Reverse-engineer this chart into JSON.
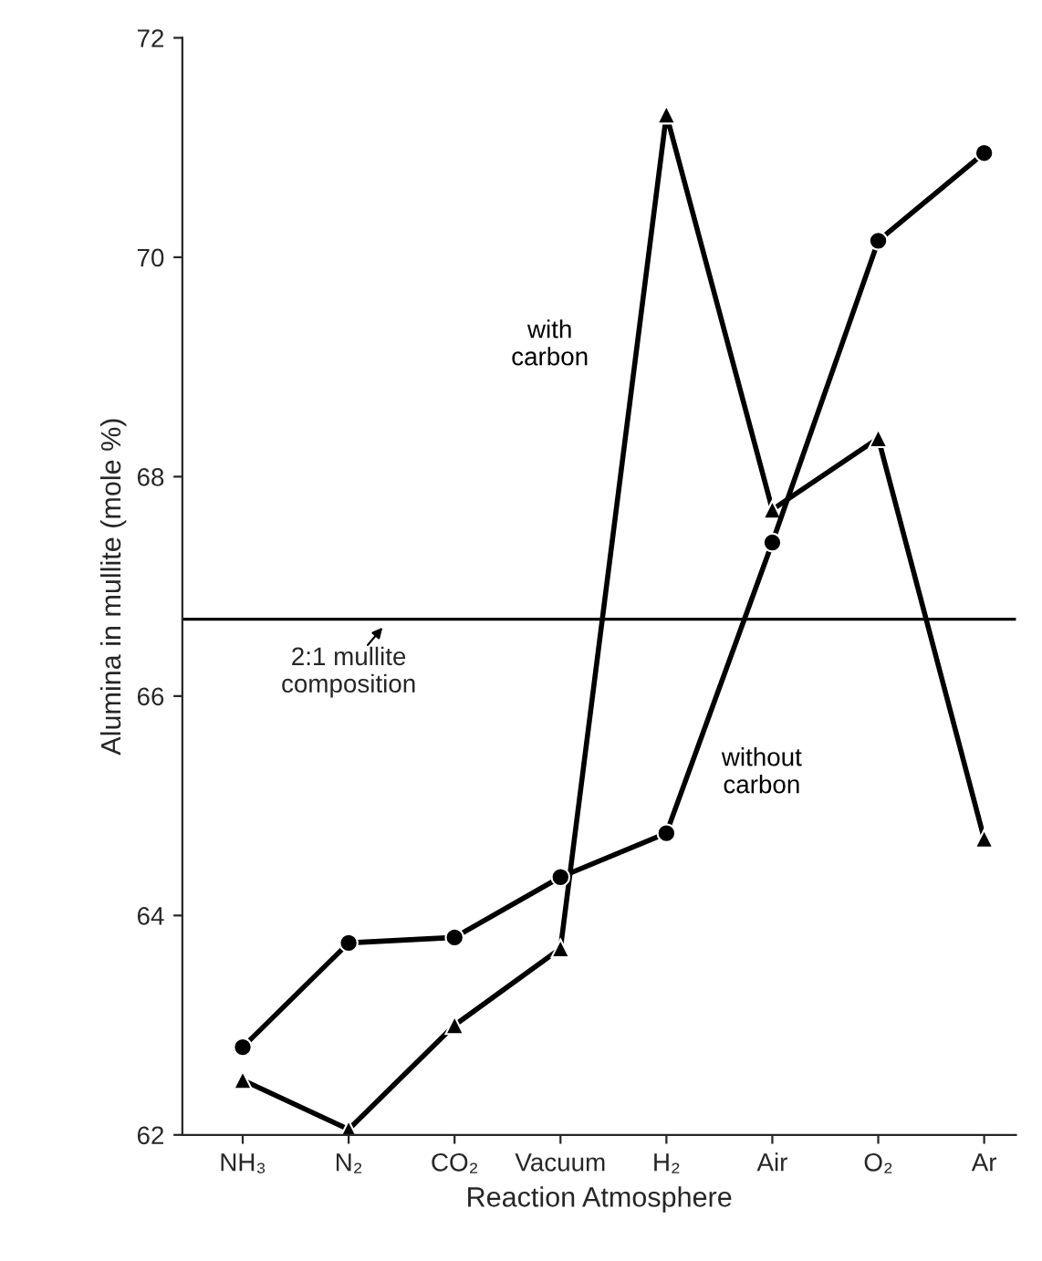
{
  "chart_data": {
    "type": "line",
    "xlabel": "Reaction Atmosphere",
    "ylabel": "Alumina in mullite (mole %)",
    "categories": [
      "NH₃",
      "N₂",
      "CO₂",
      "Vacuum",
      "H₂",
      "Air",
      "O₂",
      "Ar"
    ],
    "series": [
      {
        "name": "with carbon",
        "color": "#000000",
        "marker": "triangle",
        "values": [
          62.5,
          62.05,
          63.0,
          63.7,
          71.3,
          67.7,
          68.35,
          64.7
        ]
      },
      {
        "name": "without carbon",
        "color": "#000000",
        "marker": "circle",
        "values": [
          62.8,
          63.75,
          63.8,
          64.35,
          64.75,
          67.4,
          70.15,
          70.95
        ]
      }
    ],
    "ref_lines": [
      {
        "axis": "y",
        "value": 66.7,
        "color": "#000000"
      }
    ],
    "annotations": [
      "2:1 mullite composition"
    ],
    "ylim": [
      62,
      72
    ],
    "yticks": [
      62,
      64,
      66,
      68,
      70,
      72
    ],
    "grid": false,
    "legend": false,
    "line_style": "solid"
  }
}
